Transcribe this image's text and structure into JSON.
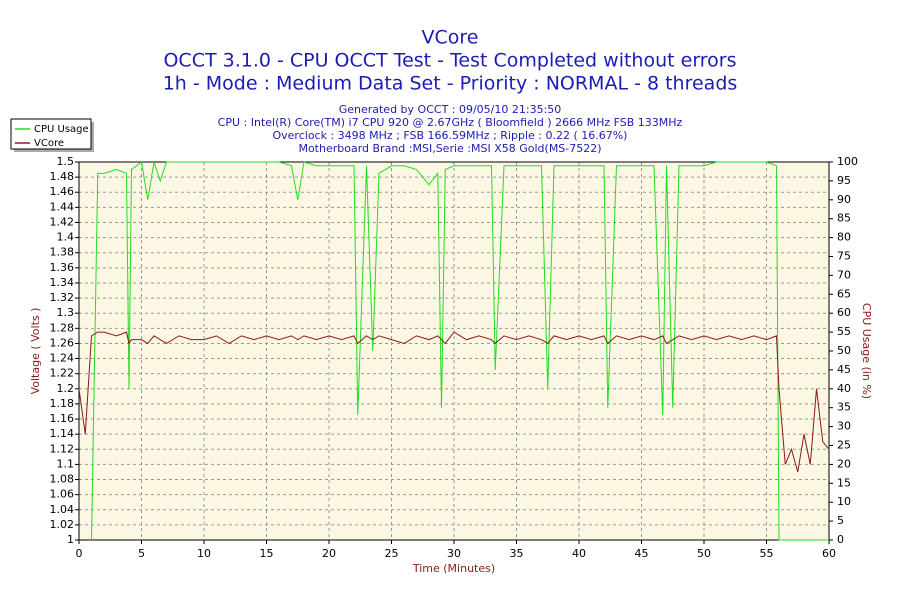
{
  "chart_data": {
    "type": "line",
    "title": "VCore",
    "subtitle": [
      "OCCT 3.1.0 - CPU OCCT Test - Test Completed without errors",
      "1h - Mode : Medium Data Set - Priority : NORMAL - 8 threads"
    ],
    "info": [
      "Generated by OCCT : 09/05/10 21:35:50",
      "CPU : Intel(R) Core(TM) i7 CPU 920 @ 2.67GHz ( Bloomfield ) 2666 MHz FSB 133MHz",
      "Overclock : 3498 MHz ; FSB 166.59MHz ; Ripple : 0.22 ( 16.67%)",
      "Motherboard Brand :MSI,Serie :MSI X58 Gold(MS-7522)"
    ],
    "x_label": "Time (Minutes)",
    "y_label": "Voltage ( Volts )",
    "y2_label": "CPU Usage (in %)",
    "xlim": [
      0,
      60
    ],
    "xticks": [
      0,
      5,
      10,
      15,
      20,
      25,
      30,
      35,
      40,
      45,
      50,
      55,
      60
    ],
    "ylim": [
      1,
      1.5
    ],
    "yticks": [
      1,
      1.02,
      1.04,
      1.06,
      1.08,
      1.1,
      1.12,
      1.14,
      1.16,
      1.18,
      1.2,
      1.22,
      1.24,
      1.26,
      1.28,
      1.3,
      1.32,
      1.34,
      1.36,
      1.38,
      1.4,
      1.42,
      1.44,
      1.46,
      1.48,
      1.5
    ],
    "y2lim": [
      0,
      100
    ],
    "y2ticks": [
      0,
      5,
      10,
      15,
      20,
      25,
      30,
      35,
      40,
      45,
      50,
      55,
      60,
      65,
      70,
      75,
      80,
      85,
      90,
      95,
      100
    ],
    "grid": true,
    "legend": "top-left",
    "x": [
      0,
      0.5,
      1,
      1.5,
      2,
      3,
      3.8,
      4,
      4.2,
      5,
      5.5,
      6,
      6.5,
      7,
      8,
      9,
      10,
      11,
      12,
      13,
      14,
      15,
      16,
      17,
      17.5,
      18,
      19,
      20,
      21,
      22,
      22.3,
      23,
      23.5,
      24,
      25,
      26,
      27,
      28,
      28.7,
      29,
      29.3,
      30,
      31,
      32,
      33,
      33.3,
      34,
      35,
      36,
      37,
      37.5,
      38,
      39,
      40,
      41,
      42,
      42.3,
      43,
      44,
      45,
      46,
      46.7,
      47,
      47.5,
      48,
      49,
      50,
      51,
      52,
      53,
      54,
      55,
      55.8,
      56,
      56.5,
      57,
      57.5,
      58,
      58.5,
      59,
      59.5,
      60
    ],
    "series": [
      {
        "name": "CPU Usage",
        "color": "#22dd22",
        "axis": "y2",
        "values": [
          null,
          null,
          0,
          97,
          97,
          98,
          97,
          40,
          98,
          100,
          90,
          100,
          95,
          100,
          100,
          100,
          100,
          100,
          100,
          100,
          100,
          100,
          100,
          99,
          90,
          100,
          99,
          99,
          99,
          99,
          33,
          99,
          50,
          97,
          99,
          99,
          98,
          94,
          97,
          35,
          98,
          99,
          99,
          99,
          99,
          45,
          99,
          99,
          99,
          99,
          40,
          99,
          99,
          99,
          99,
          99,
          35,
          99,
          99,
          99,
          99,
          33,
          99,
          35,
          99,
          99,
          99,
          100,
          100,
          100,
          100,
          100,
          99,
          0,
          0,
          0,
          0,
          0,
          0,
          0,
          0,
          0
        ]
      },
      {
        "name": "VCore",
        "color": "#8b1a1a",
        "axis": "y",
        "values": [
          1.2,
          1.14,
          1.27,
          1.275,
          1.275,
          1.27,
          1.275,
          1.26,
          1.265,
          1.265,
          1.26,
          1.27,
          1.265,
          1.26,
          1.27,
          1.265,
          1.265,
          1.27,
          1.26,
          1.27,
          1.265,
          1.27,
          1.265,
          1.27,
          1.265,
          1.27,
          1.265,
          1.27,
          1.265,
          1.27,
          1.26,
          1.27,
          1.265,
          1.27,
          1.265,
          1.26,
          1.27,
          1.265,
          1.27,
          1.265,
          1.26,
          1.275,
          1.265,
          1.27,
          1.265,
          1.26,
          1.27,
          1.265,
          1.27,
          1.265,
          1.26,
          1.27,
          1.265,
          1.27,
          1.265,
          1.27,
          1.26,
          1.27,
          1.265,
          1.27,
          1.265,
          1.27,
          1.26,
          1.265,
          1.27,
          1.265,
          1.27,
          1.265,
          1.27,
          1.265,
          1.27,
          1.265,
          1.27,
          1.2,
          1.1,
          1.12,
          1.09,
          1.14,
          1.1,
          1.2,
          1.13,
          1.12
        ]
      }
    ]
  }
}
